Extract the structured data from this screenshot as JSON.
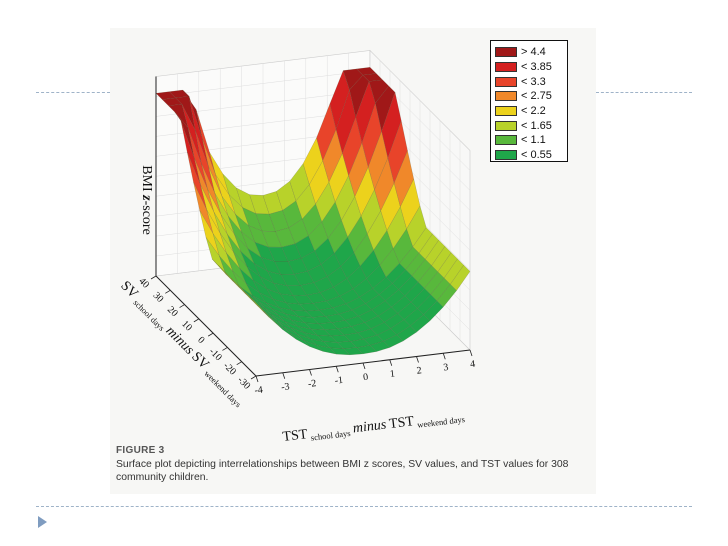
{
  "chart_data": {
    "type": "surface",
    "xlabel": {
      "main": "TST",
      "sub1": "school days",
      "mid": "minus",
      "main2": "TST",
      "sub2": "weekend days"
    },
    "ylabel": {
      "main": "SV",
      "sub1": "school days",
      "mid": "minus",
      "main2": "SV",
      "sub2": "weekend days"
    },
    "zlabel": {
      "main": "BMI",
      "italic": "z",
      "rest": "-score"
    },
    "x_ticks": [
      "-4",
      "-3",
      "-2",
      "-1",
      "0",
      "1",
      "2",
      "3",
      "4"
    ],
    "y_ticks": [
      "-30",
      "-20",
      "-10",
      "0",
      "10",
      "20",
      "30",
      "40"
    ],
    "xlim": [
      -4,
      4
    ],
    "ylim": [
      -30,
      40
    ],
    "legend_placement": "top-right",
    "legend": [
      {
        "label": "> 4.4",
        "color": "#a01818"
      },
      {
        "label": "< 3.85",
        "color": "#d42020"
      },
      {
        "label": "< 3.3",
        "color": "#e8442a"
      },
      {
        "label": "< 2.75",
        "color": "#f0882a"
      },
      {
        "label": "< 2.2",
        "color": "#ecd21c"
      },
      {
        "label": "< 1.65",
        "color": "#b8d22a"
      },
      {
        "label": "< 1.1",
        "color": "#58b83c"
      },
      {
        "label": "< 0.55",
        "color": "#1fa64a"
      }
    ],
    "contour_levels": [
      0.55,
      1.1,
      1.65,
      2.2,
      2.75,
      3.3,
      3.85,
      4.4
    ]
  },
  "caption": {
    "label": "FIGURE 3",
    "text": "Surface plot depicting interrelationships between BMI z scores, SV values, and TST values for 308 community children."
  }
}
